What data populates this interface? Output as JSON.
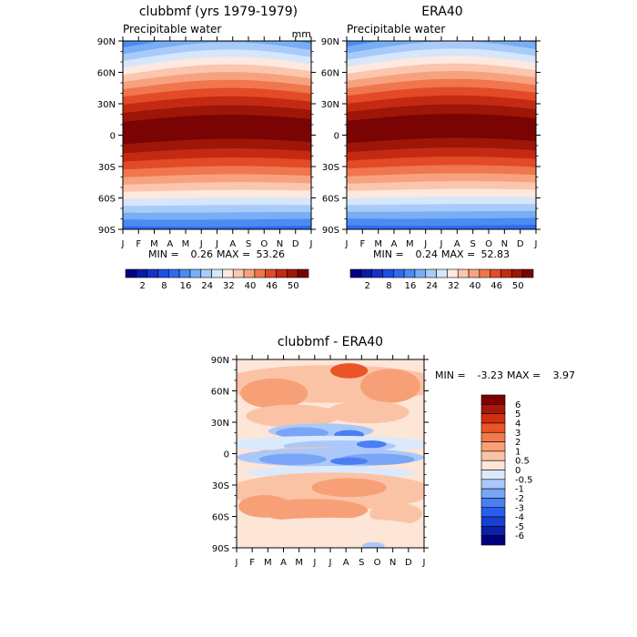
{
  "figure": {
    "panels": [
      {
        "title": "clubbmf (yrs 1979-1979)",
        "subtitle": "Precipitable water",
        "units": "mm",
        "min_label": "MIN =",
        "min_value": "0.26",
        "max_label": "MAX =",
        "max_value": "53.26"
      },
      {
        "title": "ERA40",
        "subtitle": "Precipitable water",
        "units": "",
        "min_label": "MIN =",
        "min_value": "0.24",
        "max_label": "MAX =",
        "max_value": "52.83"
      },
      {
        "title": "clubbmf - ERA40",
        "subtitle": "",
        "units": "",
        "min_label": "MIN =",
        "min_value": "-3.23",
        "max_label": "MAX =",
        "max_value": "3.97"
      }
    ]
  },
  "chart_data": [
    {
      "type": "heatmap",
      "title": "clubbmf (yrs 1979-1979)",
      "subtitle": "Precipitable water",
      "units": "mm",
      "x_ticks": [
        "J",
        "F",
        "M",
        "A",
        "M",
        "J",
        "J",
        "A",
        "S",
        "O",
        "N",
        "D",
        "J"
      ],
      "y_ticks": [
        "90N",
        "60N",
        "30N",
        "0",
        "30S",
        "60S",
        "90S"
      ],
      "ylim": [
        -90,
        90
      ],
      "min": 0.26,
      "max": 53.26,
      "colorbar_labels": [
        "2",
        "8",
        "16",
        "24",
        "32",
        "40",
        "46",
        "50"
      ],
      "color_levels": [
        2,
        4,
        6,
        8,
        12,
        16,
        20,
        24,
        28,
        32,
        36,
        40,
        44,
        46,
        48,
        50
      ]
    },
    {
      "type": "heatmap",
      "title": "ERA40",
      "subtitle": "Precipitable water",
      "x_ticks": [
        "J",
        "F",
        "M",
        "A",
        "M",
        "J",
        "J",
        "A",
        "S",
        "O",
        "N",
        "D",
        "J"
      ],
      "y_ticks": [
        "90N",
        "60N",
        "30N",
        "0",
        "30S",
        "60S",
        "90S"
      ],
      "ylim": [
        -90,
        90
      ],
      "min": 0.24,
      "max": 52.83,
      "colorbar_labels": [
        "2",
        "8",
        "16",
        "24",
        "32",
        "40",
        "46",
        "50"
      ],
      "color_levels": [
        2,
        4,
        6,
        8,
        12,
        16,
        20,
        24,
        28,
        32,
        36,
        40,
        44,
        46,
        48,
        50
      ]
    },
    {
      "type": "heatmap",
      "title": "clubbmf - ERA40",
      "x_ticks": [
        "J",
        "F",
        "M",
        "A",
        "M",
        "J",
        "J",
        "A",
        "S",
        "O",
        "N",
        "D",
        "J"
      ],
      "y_ticks": [
        "90N",
        "60N",
        "30N",
        "0",
        "30S",
        "60S",
        "90S"
      ],
      "ylim": [
        -90,
        90
      ],
      "min": -3.23,
      "max": 3.97,
      "colorbar_labels": [
        "6",
        "5",
        "4",
        "3",
        "2",
        "1",
        "0.5",
        "0",
        "-0.5",
        "-1",
        "-2",
        "-3",
        "-4",
        "-5",
        "-6"
      ],
      "color_levels": [
        -6,
        -5,
        -4,
        -3,
        -2,
        -1,
        -0.5,
        0,
        0.5,
        1,
        2,
        3,
        4,
        5,
        6
      ]
    }
  ],
  "colors": {
    "seq": [
      "#00007f",
      "#0a1aa3",
      "#1532c8",
      "#1f4ce6",
      "#2d6cf0",
      "#4a8cf2",
      "#78aef5",
      "#a9cbf8",
      "#d6e6fb",
      "#fde9e0",
      "#fbc6ad",
      "#f7a27f",
      "#f0764e",
      "#e24a28",
      "#c42a12",
      "#9e1608",
      "#7a0403"
    ],
    "diff": [
      "#00007f",
      "#0a20a8",
      "#1540d0",
      "#2a5cf0",
      "#4a7ff3",
      "#7aa5f6",
      "#aac8f9",
      "#dbe9fc",
      "#fde5d8",
      "#fbc3a5",
      "#f7a077",
      "#f27a4c",
      "#ea5528",
      "#d1300f",
      "#a8170a",
      "#7f0000"
    ]
  }
}
